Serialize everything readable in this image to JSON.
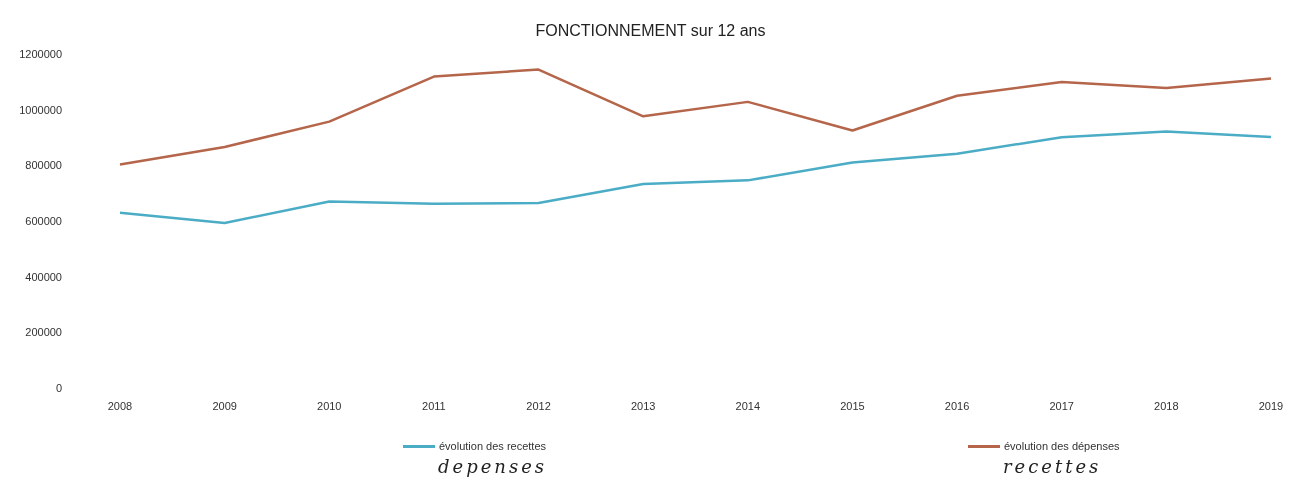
{
  "chart_data": {
    "type": "line",
    "title": "FONCTIONNEMENT sur 12 ans",
    "categories": [
      "2008",
      "2009",
      "2010",
      "2011",
      "2012",
      "2013",
      "2014",
      "2015",
      "2016",
      "2017",
      "2018",
      "2019"
    ],
    "series": [
      {
        "name": "évolution des recettes",
        "color": "#4bacc6",
        "values": [
          630000,
          593000,
          670000,
          662000,
          665000,
          733000,
          746000,
          810000,
          842000,
          901000,
          922000,
          902000
        ]
      },
      {
        "name": "évolution des dépenses",
        "color": "#b5654a",
        "values": [
          803000,
          866000,
          957000,
          1119000,
          1144000,
          976000,
          1028000,
          925000,
          1050000,
          1099000,
          1078000,
          1112000
        ]
      }
    ],
    "ylim": [
      0,
      1200000
    ],
    "yticks": [
      0,
      200000,
      400000,
      600000,
      800000,
      1000000,
      1200000
    ],
    "grid": false,
    "legend": "bottom",
    "marker": "none",
    "line_style": "solid",
    "annotations": [
      "depenses",
      "recettes"
    ]
  }
}
